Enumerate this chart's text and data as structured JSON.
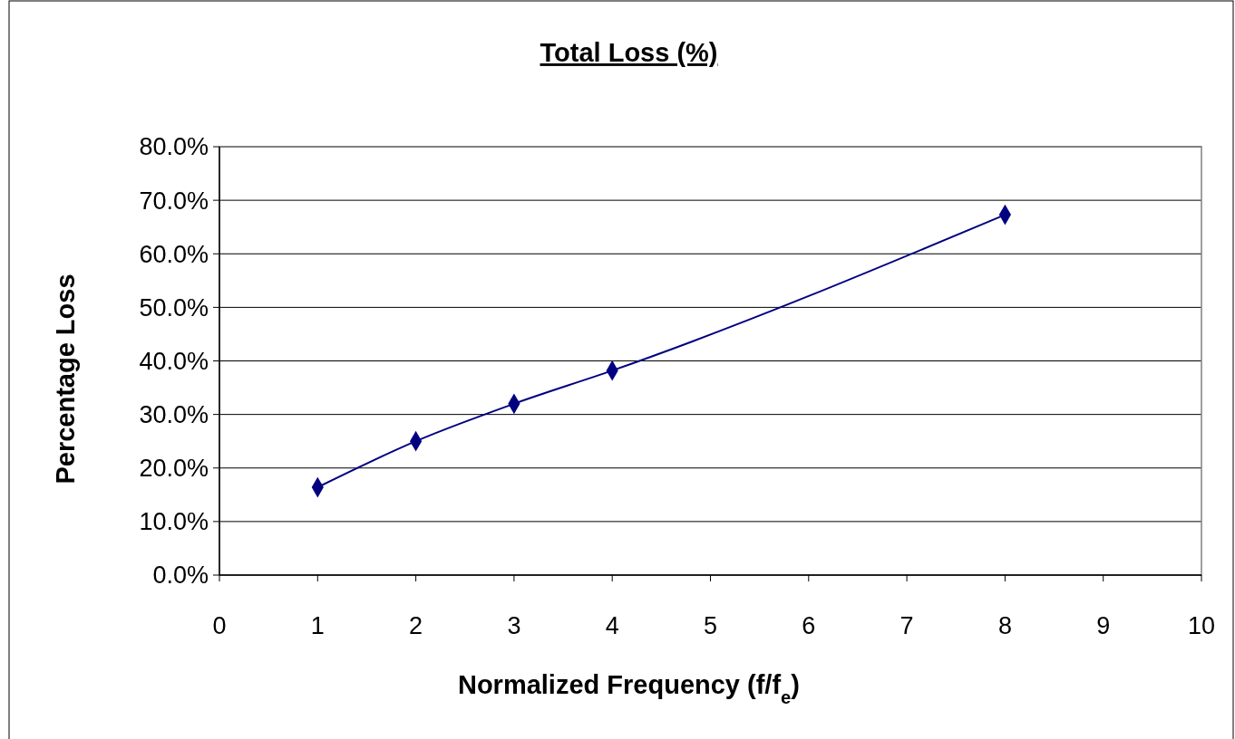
{
  "chart_data": {
    "type": "line",
    "title": "Total Loss (%)",
    "xlabel": "Normalized Frequency (f/f$_{e}$)",
    "ylabel": "Percentage Loss",
    "x": [
      1,
      2,
      3,
      4,
      8
    ],
    "series": [
      {
        "color": "#000080",
        "values": [
          16.4,
          25.0,
          32.0,
          38.2,
          67.3
        ]
      }
    ],
    "xlim": [
      0,
      10
    ],
    "xticks": [
      0,
      1,
      2,
      3,
      4,
      5,
      6,
      7,
      8,
      9,
      10
    ],
    "ylim": [
      0,
      80
    ],
    "yticks": [
      {
        "value": 0,
        "label": "0.0%"
      },
      {
        "value": 10,
        "label": "10.0%"
      },
      {
        "value": 20,
        "label": "20.0%"
      },
      {
        "value": 30,
        "label": "30.0%"
      },
      {
        "value": 40,
        "label": "40.0%"
      },
      {
        "value": 50,
        "label": "50.0%"
      },
      {
        "value": 60,
        "label": "60.0%"
      },
      {
        "value": 70,
        "label": "70.0%"
      },
      {
        "value": 80,
        "label": "80.0%"
      }
    ],
    "grid": "y",
    "marker": "diamond",
    "line_style": "solid"
  }
}
